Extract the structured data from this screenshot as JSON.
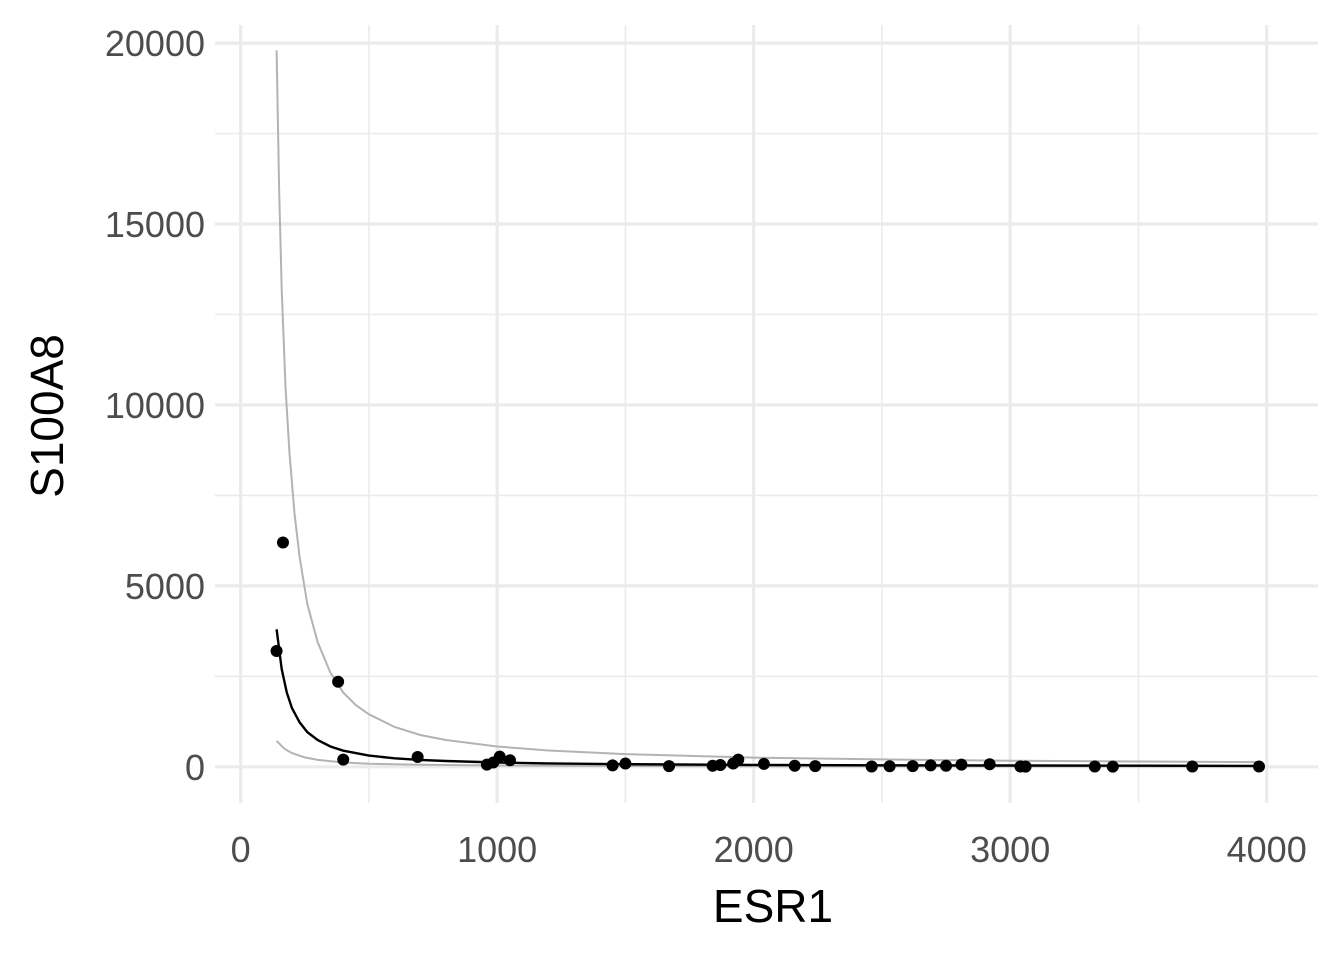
{
  "chart_data": {
    "type": "scatter",
    "title": "",
    "xlabel": "ESR1",
    "ylabel": "S100A8",
    "xlim": [
      -100,
      4200
    ],
    "ylim": [
      -1000,
      20500
    ],
    "x_ticks": [
      0,
      1000,
      2000,
      3000,
      4000
    ],
    "x_tick_labels": [
      "0",
      "1000",
      "2000",
      "3000",
      "4000"
    ],
    "x_minor_ticks": [
      500,
      1500,
      2500,
      3500
    ],
    "y_ticks": [
      0,
      5000,
      10000,
      15000,
      20000
    ],
    "y_tick_labels": [
      "0",
      "5000",
      "10000",
      "15000",
      "20000"
    ],
    "y_minor_ticks": [
      2500,
      7500,
      12500,
      17500
    ],
    "grid": true,
    "legend": "none",
    "colors": {
      "points": "#000000",
      "fit": "#000000",
      "band": "#b3b3b3"
    },
    "points": [
      {
        "x": 140,
        "y": 3200
      },
      {
        "x": 165,
        "y": 6200
      },
      {
        "x": 380,
        "y": 2350
      },
      {
        "x": 400,
        "y": 200
      },
      {
        "x": 690,
        "y": 270
      },
      {
        "x": 960,
        "y": 60
      },
      {
        "x": 985,
        "y": 120
      },
      {
        "x": 1010,
        "y": 280
      },
      {
        "x": 1050,
        "y": 180
      },
      {
        "x": 1450,
        "y": 40
      },
      {
        "x": 1500,
        "y": 90
      },
      {
        "x": 1670,
        "y": 20
      },
      {
        "x": 1840,
        "y": 30
      },
      {
        "x": 1870,
        "y": 50
      },
      {
        "x": 1920,
        "y": 90
      },
      {
        "x": 1940,
        "y": 200
      },
      {
        "x": 2040,
        "y": 80
      },
      {
        "x": 2160,
        "y": 30
      },
      {
        "x": 2240,
        "y": 20
      },
      {
        "x": 2460,
        "y": 10
      },
      {
        "x": 2530,
        "y": 15
      },
      {
        "x": 2620,
        "y": 20
      },
      {
        "x": 2690,
        "y": 40
      },
      {
        "x": 2750,
        "y": 30
      },
      {
        "x": 2810,
        "y": 60
      },
      {
        "x": 2920,
        "y": 70
      },
      {
        "x": 3040,
        "y": 10
      },
      {
        "x": 3060,
        "y": 5
      },
      {
        "x": 3330,
        "y": 10
      },
      {
        "x": 3400,
        "y": 5
      },
      {
        "x": 3710,
        "y": 10
      },
      {
        "x": 3970,
        "y": 10
      }
    ],
    "fit_line": {
      "x": [
        140,
        160,
        180,
        200,
        230,
        260,
        300,
        350,
        400,
        500,
        600,
        700,
        800,
        1000,
        1200,
        1500,
        2000,
        2500,
        3000,
        3500,
        3970
      ],
      "y": [
        3800,
        2700,
        2050,
        1620,
        1230,
        960,
        740,
        560,
        445,
        310,
        235,
        190,
        160,
        120,
        95,
        72,
        52,
        42,
        35,
        30,
        26
      ]
    },
    "band_upper": {
      "x": [
        140,
        150,
        160,
        175,
        190,
        210,
        230,
        260,
        300,
        350,
        400,
        450,
        500,
        600,
        700,
        800,
        1000,
        1200,
        1500,
        2000,
        2500,
        3000,
        3500,
        3970
      ],
      "y": [
        19800,
        16000,
        13200,
        10500,
        8700,
        7000,
        5800,
        4500,
        3450,
        2600,
        2050,
        1700,
        1450,
        1100,
        880,
        740,
        560,
        450,
        350,
        255,
        205,
        170,
        148,
        130
      ]
    },
    "band_lower": {
      "x": [
        140,
        170,
        200,
        250,
        300,
        400,
        500,
        700,
        1000,
        1500,
        2000,
        2500,
        3000,
        3500,
        3970
      ],
      "y": [
        720,
        500,
        380,
        260,
        190,
        120,
        85,
        55,
        35,
        22,
        17,
        14,
        12,
        11,
        10
      ]
    }
  }
}
